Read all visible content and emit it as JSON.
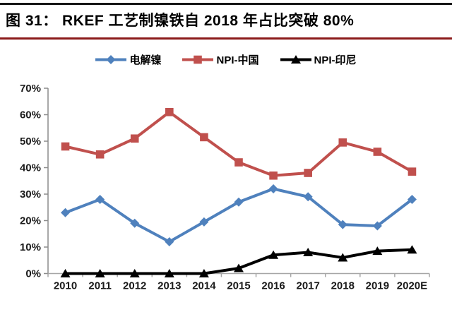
{
  "header": {
    "title": "图 31： RKEF 工艺制镍铁自 2018 年占比突破 80%"
  },
  "colors": {
    "accent_rule": "#8B1A1A",
    "top_rule": "#161616",
    "axis_line": "#8c8c8c",
    "x_axis_line": "#a6a6a6",
    "series_blue": "#4F81BD",
    "series_red": "#C0504D",
    "series_black": "#000000"
  },
  "chart_data": {
    "type": "line",
    "title": "图 31： RKEF 工艺制镍铁自 2018 年占比突破 80%",
    "categories": [
      "2010",
      "2011",
      "2012",
      "2013",
      "2014",
      "2015",
      "2016",
      "2017",
      "2018",
      "2019",
      "2020E"
    ],
    "series": [
      {
        "name": "电解镍",
        "color": "#4F81BD",
        "marker": "diamond",
        "values": [
          23,
          28,
          19,
          12,
          19.5,
          27,
          32,
          29,
          18.5,
          18,
          28
        ]
      },
      {
        "name": "NPI-中国",
        "color": "#C0504D",
        "marker": "square",
        "values": [
          48,
          45,
          51,
          61,
          51.5,
          42,
          37,
          38,
          49.5,
          46,
          38.5
        ]
      },
      {
        "name": "NPI-印尼",
        "color": "#000000",
        "marker": "triangle",
        "values": [
          0,
          0,
          0,
          0,
          0,
          2,
          7,
          8,
          6,
          8.5,
          9
        ]
      }
    ],
    "ylim": [
      0,
      70
    ],
    "yticks": [
      "0%",
      "10%",
      "20%",
      "30%",
      "40%",
      "50%",
      "60%",
      "70%"
    ],
    "ytick_step": 10,
    "xlabel": "",
    "ylabel": "",
    "grid": false,
    "legend_position": "top"
  }
}
